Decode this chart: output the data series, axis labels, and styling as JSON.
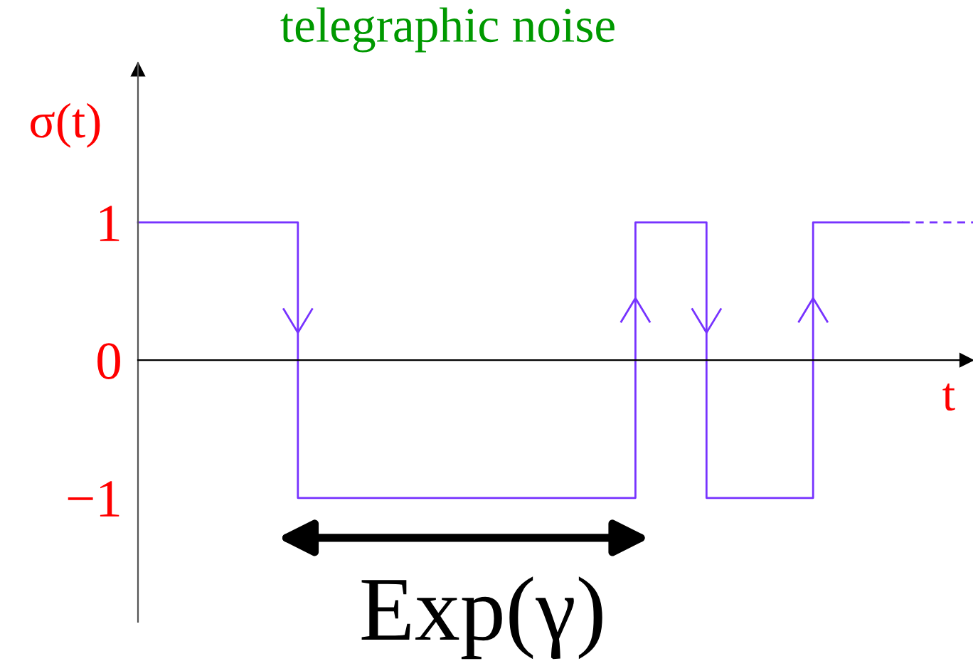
{
  "chart_data": {
    "type": "step",
    "title": "telegraphic noise",
    "xlabel": "t",
    "ylabel": "σ(t)",
    "annotations": [
      "Exp(γ)"
    ],
    "categories": [
      null,
      null,
      null,
      null,
      null,
      null,
      null,
      null,
      null,
      null,
      null,
      null,
      null,
      null,
      null,
      null,
      null,
      null,
      null,
      null,
      null,
      null,
      null,
      null,
      null,
      null,
      null,
      null,
      null,
      null,
      null,
      null,
      null,
      null,
      null,
      null,
      null,
      null,
      null,
      null,
      null,
      null,
      null,
      null
    ],
    "series": [
      {
        "color": "#7733ff",
        "values": [
          1,
          1,
          1,
          1,
          1,
          1,
          1,
          1,
          1,
          -1,
          -1,
          -1,
          -1,
          -1,
          -1,
          -1,
          -1,
          -1,
          -1,
          -1,
          -1,
          -1,
          -1,
          -1,
          -1,
          -1,
          -1,
          -1,
          1,
          1,
          1,
          1,
          -1,
          -1,
          -1,
          -1,
          -1,
          -1,
          1,
          1,
          1,
          1,
          1,
          1
        ]
      }
    ],
    "ylim": [
      -1.9,
      2.15
    ],
    "yticks": [
      1,
      0,
      {
        "value": -1,
        "label": "−1"
      }
    ],
    "tick_labels": "y"
  }
}
